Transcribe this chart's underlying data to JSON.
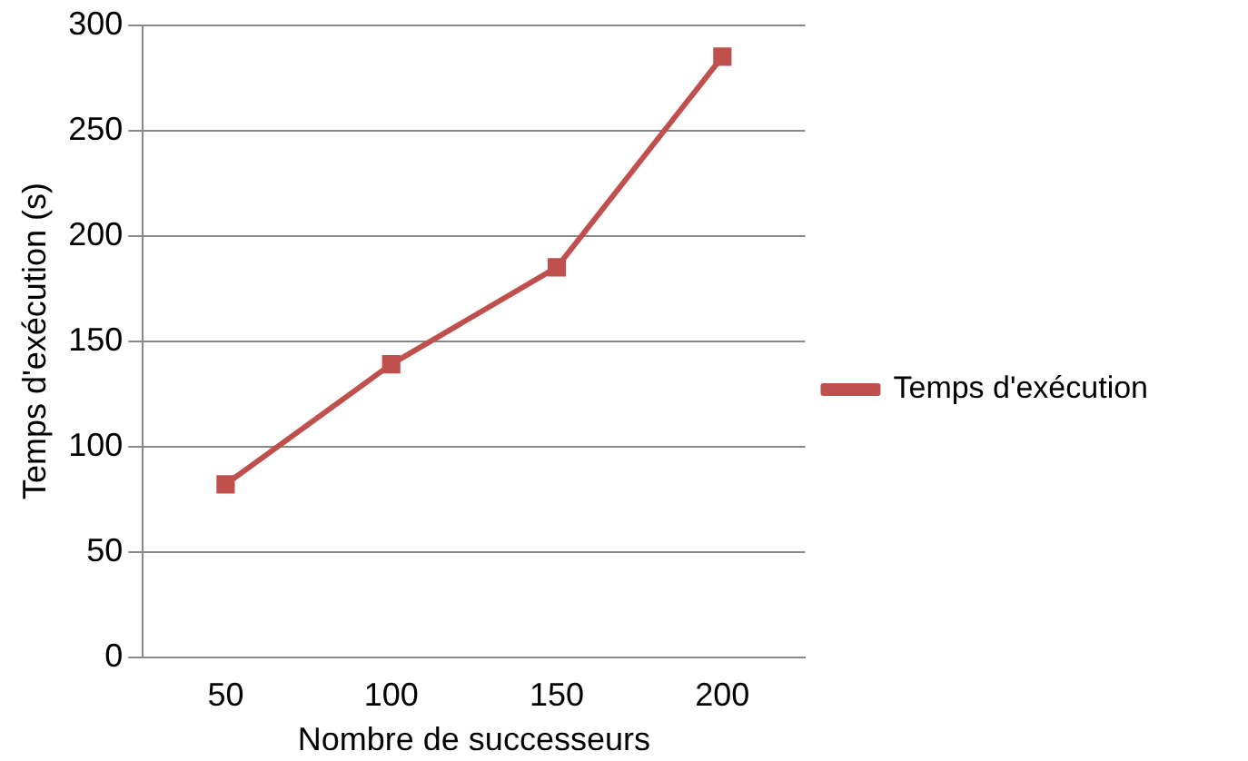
{
  "chart_data": {
    "type": "line",
    "xlabel": "Nombre de successeurs",
    "ylabel": "Temps d'exécution (s)",
    "categories": [
      "50",
      "100",
      "150",
      "200"
    ],
    "series": [
      {
        "name": "Temps d'exécution",
        "color": "#c0504d",
        "values": [
          82,
          139,
          185,
          285
        ]
      }
    ],
    "ylim": [
      0,
      300
    ],
    "yticks": [
      0,
      50,
      100,
      150,
      200,
      250,
      300
    ],
    "grid": "y",
    "legend": "right",
    "marker": "square",
    "line_style": "solid"
  }
}
